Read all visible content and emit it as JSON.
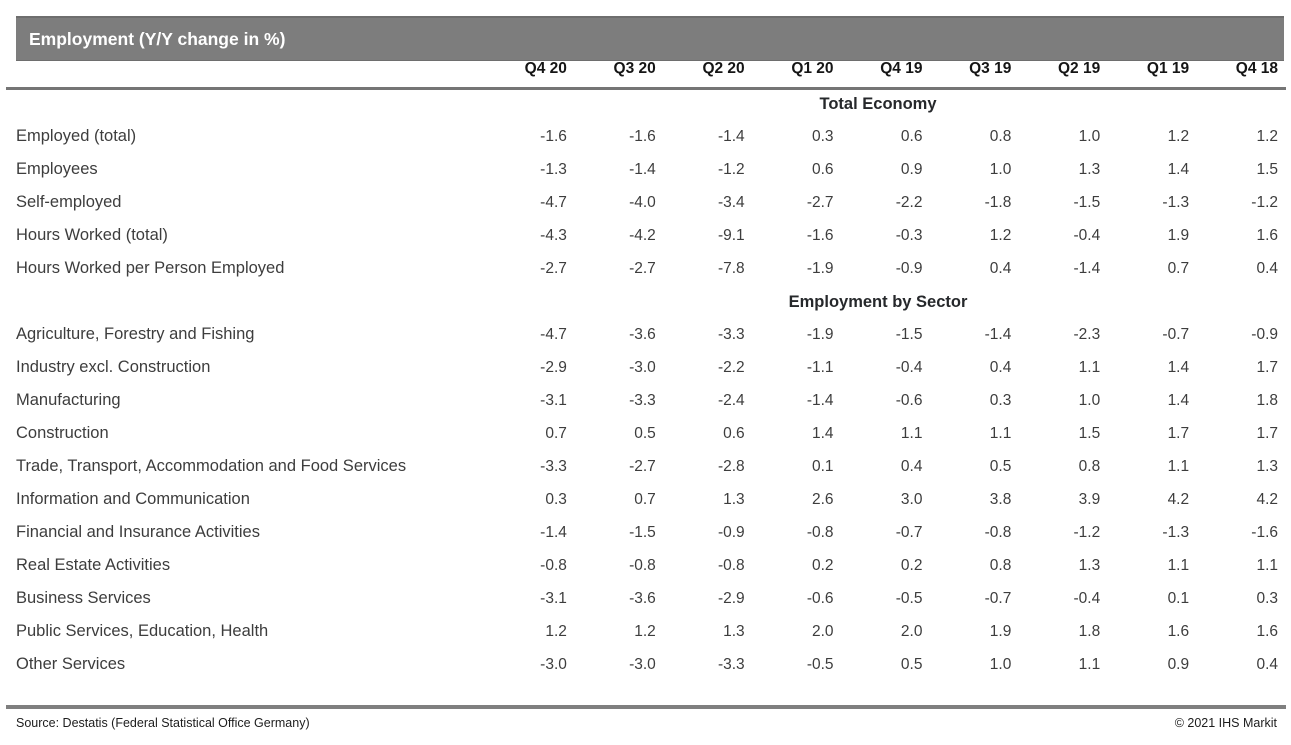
{
  "header": {
    "title": "Employment (Y/Y change in %)"
  },
  "chart_data": {
    "type": "table",
    "title": "Employment (Y/Y change in %)",
    "unit": "Y/Y change in %",
    "columns": [
      "Q4 20",
      "Q3 20",
      "Q2 20",
      "Q1 20",
      "Q4 19",
      "Q3 19",
      "Q2 19",
      "Q1 19",
      "Q4 18"
    ],
    "sections": [
      {
        "header": "Total Economy",
        "rows": [
          {
            "label": "Employed (total)",
            "values": [
              "-1.6",
              "-1.6",
              "-1.4",
              "0.3",
              "0.6",
              "0.8",
              "1.0",
              "1.2",
              "1.2"
            ]
          },
          {
            "label": "Employees",
            "values": [
              "-1.3",
              "-1.4",
              "-1.2",
              "0.6",
              "0.9",
              "1.0",
              "1.3",
              "1.4",
              "1.5"
            ]
          },
          {
            "label": "Self-employed",
            "values": [
              "-4.7",
              "-4.0",
              "-3.4",
              "-2.7",
              "-2.2",
              "-1.8",
              "-1.5",
              "-1.3",
              "-1.2"
            ]
          },
          {
            "label": "Hours Worked (total)",
            "values": [
              "-4.3",
              "-4.2",
              "-9.1",
              "-1.6",
              "-0.3",
              "1.2",
              "-0.4",
              "1.9",
              "1.6"
            ]
          },
          {
            "label": "Hours Worked per Person Employed",
            "values": [
              "-2.7",
              "-2.7",
              "-7.8",
              "-1.9",
              "-0.9",
              "0.4",
              "-1.4",
              "0.7",
              "0.4"
            ]
          }
        ]
      },
      {
        "header": "Employment by Sector",
        "rows": [
          {
            "label": "Agriculture, Forestry and Fishing",
            "values": [
              "-4.7",
              "-3.6",
              "-3.3",
              "-1.9",
              "-1.5",
              "-1.4",
              "-2.3",
              "-0.7",
              "-0.9"
            ]
          },
          {
            "label": "Industry excl. Construction",
            "values": [
              "-2.9",
              "-3.0",
              "-2.2",
              "-1.1",
              "-0.4",
              "0.4",
              "1.1",
              "1.4",
              "1.7"
            ]
          },
          {
            "label": "Manufacturing",
            "values": [
              "-3.1",
              "-3.3",
              "-2.4",
              "-1.4",
              "-0.6",
              "0.3",
              "1.0",
              "1.4",
              "1.8"
            ]
          },
          {
            "label": "Construction",
            "values": [
              "0.7",
              "0.5",
              "0.6",
              "1.4",
              "1.1",
              "1.1",
              "1.5",
              "1.7",
              "1.7"
            ]
          },
          {
            "label": "Trade, Transport, Accommodation and Food Services",
            "values": [
              "-3.3",
              "-2.7",
              "-2.8",
              "0.1",
              "0.4",
              "0.5",
              "0.8",
              "1.1",
              "1.3"
            ]
          },
          {
            "label": "Information and Communication",
            "values": [
              "0.3",
              "0.7",
              "1.3",
              "2.6",
              "3.0",
              "3.8",
              "3.9",
              "4.2",
              "4.2"
            ]
          },
          {
            "label": "Financial and Insurance Activities",
            "values": [
              "-1.4",
              "-1.5",
              "-0.9",
              "-0.8",
              "-0.7",
              "-0.8",
              "-1.2",
              "-1.3",
              "-1.6"
            ]
          },
          {
            "label": "Real Estate Activities",
            "values": [
              "-0.8",
              "-0.8",
              "-0.8",
              "0.2",
              "0.2",
              "0.8",
              "1.3",
              "1.1",
              "1.1"
            ]
          },
          {
            "label": "Business Services",
            "values": [
              "-3.1",
              "-3.6",
              "-2.9",
              "-0.6",
              "-0.5",
              "-0.7",
              "-0.4",
              "0.1",
              "0.3"
            ]
          },
          {
            "label": "Public Services, Education, Health",
            "values": [
              "1.2",
              "1.2",
              "1.3",
              "2.0",
              "2.0",
              "1.9",
              "1.8",
              "1.6",
              "1.6"
            ]
          },
          {
            "label": "Other Services",
            "values": [
              "-3.0",
              "-3.0",
              "-3.3",
              "-0.5",
              "0.5",
              "1.0",
              "1.1",
              "0.9",
              "0.4"
            ]
          }
        ]
      }
    ],
    "layout": {
      "legend": "none",
      "grid": "off",
      "value_alignment": "right"
    }
  },
  "footer": {
    "source": "Source: Destatis (Federal Statistical Office Germany)",
    "copyright": "© 2021 IHS Markit"
  },
  "colors": {
    "title_bar_bg": "#7d7d7d",
    "title_bar_text": "#ffffff",
    "header_rule": "#757575",
    "bottom_rule": "#7f7f7f",
    "body_text": "#3d3d3d",
    "column_header_text": "#151515",
    "section_header_text": "#26282b"
  }
}
